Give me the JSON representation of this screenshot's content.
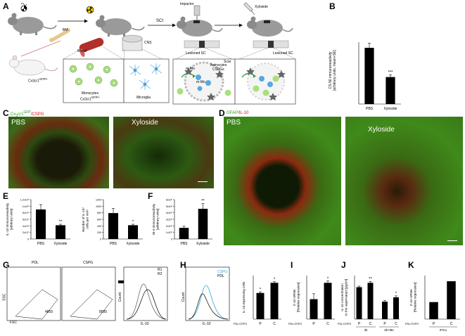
{
  "panels": {
    "a": "A",
    "b": "B",
    "c": "C",
    "d": "D",
    "e": "E",
    "f": "F",
    "g": "G",
    "h": "H",
    "i": "I",
    "j": "J",
    "k": "K"
  },
  "panel_a": {
    "bm": "BM",
    "blood": "Blood",
    "cns": "CNS",
    "sci": "SCI",
    "impactor": "Impactor",
    "xyloside": "Xyloside",
    "mouse_label": "Cx3cr1",
    "mouse_label_sup": "GFP/+",
    "monocytes": "Monocytes",
    "monocytes2": "Cx3cr1",
    "monocytes2_sup": "GFP/+",
    "microglia": "Microglia",
    "lesioned1": "Lesioned SC",
    "lesioned2": "Lesioned SC",
    "scar": "Scar",
    "astro": "Astrocytes",
    "cspgs": "CSPGs",
    "mmo": "m-Mo",
    "mmo2": "m-Mo"
  },
  "panel_b": {
    "ylabel": "CS-56 immunoreactivity",
    "ylabel2": "[arbitrary units, mean+SE]",
    "categories": [
      "PBS",
      "Xyloside"
    ],
    "star": "***"
  },
  "panel_c": {
    "title_a": "Cx",
    "title_sub": "3",
    "title_b": "cr1",
    "title_sup": "GFP",
    "title_c": "/CSPG",
    "pbs": "PBS",
    "xyl": "Xyloside"
  },
  "panel_d": {
    "title_a": "GFAP",
    "title_b": "/IL-10",
    "pbs": "PBS",
    "xyl": "Xyloside"
  },
  "panel_e": {
    "left_ylabel": "IL-10 immunoreactivity",
    "left_ylabel2": "[arbitrary units]",
    "left_ticks": [
      "1.2x10⁸",
      "1x10⁸",
      "8x10⁷",
      "6x10⁷",
      "4x10⁷",
      "2x10⁷",
      "0"
    ],
    "left_star": "**",
    "right_ylabel": "Number of IL-10⁺",
    "right_ylabel2": "cells per mm²",
    "right_ticks": [
      "1200",
      "1000",
      "800",
      "600",
      "400",
      "200",
      "0"
    ],
    "right_star": "*",
    "categories": [
      "PBS",
      "Xyloside"
    ]
  },
  "panel_f": {
    "ylabel": "IB-4 immunoreactivity",
    "ylabel2": "[arbitrary units]",
    "ticks": [
      "6x10⁶",
      "5x10⁶",
      "4x10⁶",
      "3x10⁶",
      "2x10⁶",
      "1x10⁶",
      "0"
    ],
    "star": "**",
    "categories": [
      "PBS",
      "Xyloside"
    ]
  },
  "panel_g": {
    "pdl": "PDL",
    "cspg": "CSPG",
    "ssc": "SSC",
    "fsc": "FSC",
    "r1": "R1",
    "r2": "R2",
    "gate1": "4855",
    "gate2": "8585",
    "count": "Count",
    "il10": "IL-10"
  },
  "panel_h": {
    "cspg": "CSPG",
    "pdl": "PDL",
    "count": "Count",
    "il10": "IL-10",
    "ylabel": "IL-10 expressing cells",
    "xrow": "PDL/CSPG",
    "p": "P",
    "c": "C",
    "star": "*"
  },
  "panel_i": {
    "ylabel": "Il-10 mRNA",
    "ylabel2": "[Relative expression]",
    "xrow": "PDL/CSPG",
    "p": "P",
    "c": "C",
    "star": "*"
  },
  "panel_j": {
    "ylabel": "IL-10 concentration",
    "ylabel2": "in the supernatant [pg/ml]",
    "xrow": "PDL/CSPG",
    "p1": "P",
    "c1": "C",
    "p2": "P",
    "c2": "C",
    "g1": "d5",
    "g2": "d5+IB4",
    "star1": "**",
    "star2": "*"
  },
  "panel_k": {
    "ylabel": "Il-10 mRNA",
    "ylabel2": "[Relative expression]",
    "xrow": "PDL/CSPG",
    "p": "P",
    "c": "C",
    "ifn": "IFN-γ"
  },
  "chart_data": [
    {
      "id": "b",
      "type": "bar",
      "categories": [
        "PBS",
        "Xyloside"
      ],
      "values": [
        1.0,
        0.48
      ],
      "errors": [
        0.08,
        0.04
      ],
      "ylim": [
        0,
        1.1
      ]
    },
    {
      "id": "e-left",
      "type": "bar",
      "categories": [
        "PBS",
        "Xyloside"
      ],
      "values": [
        90000000,
        42000000
      ],
      "errors": [
        15000000,
        3000000
      ],
      "ylim": [
        0,
        120000000
      ]
    },
    {
      "id": "e-right",
      "type": "bar",
      "categories": [
        "PBS",
        "Xyloside"
      ],
      "values": [
        790,
        420
      ],
      "errors": [
        140,
        30
      ],
      "ylim": [
        0,
        1200
      ]
    },
    {
      "id": "f",
      "type": "bar",
      "categories": [
        "PBS",
        "Xyloside"
      ],
      "values": [
        1700000,
        4600000
      ],
      "errors": [
        250000,
        800000
      ],
      "ylim": [
        0,
        6000000
      ]
    },
    {
      "id": "h",
      "type": "bar",
      "categories": [
        "P",
        "C"
      ],
      "values": [
        0.72,
        1.0
      ],
      "errors": [
        0.03,
        0.03
      ],
      "ylim": [
        0,
        1.2
      ]
    },
    {
      "id": "i",
      "type": "bar",
      "categories": [
        "P",
        "C"
      ],
      "values": [
        0.55,
        1.0
      ],
      "errors": [
        0.15,
        0.05
      ],
      "ylim": [
        0,
        1.2
      ]
    },
    {
      "id": "j",
      "type": "bar",
      "categories": [
        "P",
        "C",
        "P",
        "C"
      ],
      "values": [
        0.88,
        1.0,
        0.48,
        0.6
      ],
      "errors": [
        0.03,
        0.04,
        0.03,
        0.04
      ],
      "ylim": [
        0,
        1.2
      ]
    },
    {
      "id": "k",
      "type": "bar",
      "categories": [
        "P",
        "C"
      ],
      "values": [
        0.45,
        1.0
      ],
      "errors": [
        0,
        0
      ],
      "ylim": [
        0,
        1.15
      ]
    }
  ]
}
